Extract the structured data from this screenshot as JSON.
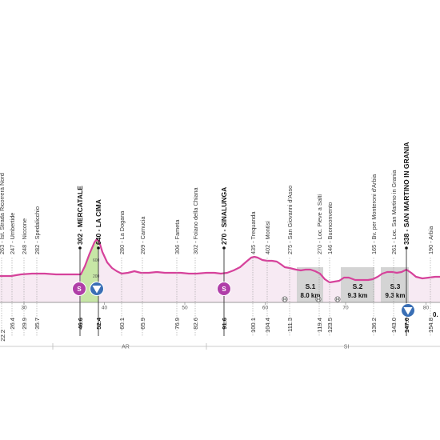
{
  "stage_profile": {
    "waypoints": [
      {
        "name": "263 - Ist. Strada Ricorrerà Nord",
        "km": "",
        "major": false
      },
      {
        "name": "247 - Umbertide",
        "km": "26.4",
        "major": false
      },
      {
        "name": "248 - Niccone",
        "km": "29.9",
        "major": false
      },
      {
        "name": "282 - Spedalicchio",
        "km": "35.7",
        "major": false
      },
      {
        "name": "302 - MERCATALE",
        "km": "46.6",
        "major": true
      },
      {
        "name": "640 - LA CIMA",
        "km": "52.4",
        "major": true
      },
      {
        "name": "280 - La Dogana",
        "km": "60.1",
        "major": false
      },
      {
        "name": "269 - Camucia",
        "km": "65.9",
        "major": false
      },
      {
        "name": "306 - Fameta",
        "km": "76.9",
        "major": false
      },
      {
        "name": "302 - Foiano della Chiana",
        "km": "82.6",
        "major": false
      },
      {
        "name": "270 - SINALUNGA",
        "km": "91.6",
        "major": true
      },
      {
        "name": "435 - Trequanda",
        "km": "100.1",
        "major": false
      },
      {
        "name": "402 - Montisi",
        "km": "104.4",
        "major": false
      },
      {
        "name": "275 - San Giovanni d'Asso",
        "km": "111.3",
        "major": false
      },
      {
        "name": "270 - Loc. Pieve a Salti",
        "km": "119.4",
        "major": false
      },
      {
        "name": "146 - Buonconvento",
        "km": "123.5",
        "major": false
      },
      {
        "name": "165 - Bv. per Monteroni d'Arbia",
        "km": "136.2",
        "major": false
      },
      {
        "name": "261 - Loc. San Martino in Grania",
        "km": "143.0",
        "major": false
      },
      {
        "name": "338 - SAN MARTINO IN GRANIA",
        "km": "147.0",
        "major": true
      },
      {
        "name": "190 - Arbia",
        "km": "154.8",
        "major": false
      }
    ],
    "left_edge_km": "22.2",
    "km_scale": [
      "30",
      "40",
      "50",
      "60",
      "70",
      "80",
      "90",
      "100",
      "110",
      "120",
      "130",
      "140",
      "150"
    ],
    "altitude_marks": [
      "600",
      "200"
    ],
    "regions": [
      "AR",
      "SI"
    ],
    "gravel_sectors": [
      {
        "title": "S.1",
        "length": "8.0 km"
      },
      {
        "title": "S.2",
        "length": "9.3 km"
      },
      {
        "title": "S.3",
        "length": "9.3 km"
      }
    ],
    "right_edge_label": "0.",
    "markers": [
      {
        "type": "sprint",
        "label": "S",
        "color": "#b03ea8"
      },
      {
        "type": "kom",
        "label": "3",
        "color": "#3a6fb5"
      },
      {
        "type": "sprint",
        "label": "S",
        "color": "#b03ea8"
      },
      {
        "type": "kom",
        "label": "4",
        "color": "#3a6fb5"
      }
    ],
    "colors": {
      "profile_line": "#d6429b",
      "profile_fill": "#f7eaf3",
      "climb_fill": "#c7e6a6",
      "gravel_fill": "#d4d4d4"
    }
  }
}
